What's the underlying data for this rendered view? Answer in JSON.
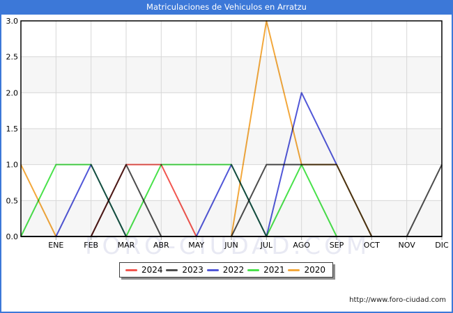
{
  "window": {
    "title": "Matriculaciones de Vehiculos en Arratzu"
  },
  "watermark": {
    "text": "FORO-CIUDAD.COM"
  },
  "footer": {
    "url": "http://www.foro-ciudad.com"
  },
  "colors": {
    "titlebar_bg": "#3c78d8",
    "titlebar_text": "#ffffff",
    "frame_border": "#3c78d8",
    "plot_bg": "#ffffff",
    "band": "#f6f6f6",
    "grid": "#d7d7d7",
    "axis": "#000000",
    "tick": "#999999",
    "label_text": "#000000",
    "watermark_text": "#e8e9f3",
    "legend_border": "#3d3d3d",
    "legend_shadow": "#8d8d8d",
    "footer_text": "#1a1a1a"
  },
  "chart_data": {
    "type": "line",
    "title": "Matriculaciones de Vehiculos en Arratzu",
    "xlabel": "",
    "ylabel": "",
    "categories": [
      "",
      "ENE",
      "FEB",
      "MAR",
      "ABR",
      "MAY",
      "JUN",
      "JUL",
      "AGO",
      "SEP",
      "OCT",
      "NOV",
      "DIC"
    ],
    "x_axis_note": "first data point sits on the left plot edge, one slot before ENE",
    "ylim": [
      0,
      3
    ],
    "ytick_step": 0.5,
    "ytick_labels": [
      "0.0",
      "0.5",
      "1.0",
      "1.5",
      "2.0",
      "2.5",
      "3.0"
    ],
    "grid": true,
    "alternating_row_bands": true,
    "legend_position": "bottom-center",
    "series": [
      {
        "name": "2024",
        "color": "#f2564f",
        "values": [
          0,
          0,
          0,
          1,
          1,
          0,
          null,
          null,
          null,
          null,
          null,
          null,
          null
        ]
      },
      {
        "name": "2023",
        "color": "#4d4d4d",
        "values": [
          0,
          0,
          0,
          1,
          0,
          0,
          0,
          1,
          1,
          1,
          0,
          0,
          1
        ]
      },
      {
        "name": "2022",
        "color": "#5157d8",
        "values": [
          0,
          0,
          1,
          0,
          0,
          0,
          1,
          0,
          2,
          1,
          null,
          null,
          null
        ]
      },
      {
        "name": "2021",
        "color": "#49e24b",
        "values": [
          0,
          1,
          1,
          0,
          1,
          1,
          1,
          0,
          1,
          0,
          0,
          0,
          0
        ]
      },
      {
        "name": "2020",
        "color": "#f3a83c",
        "values": [
          1,
          0,
          0,
          0,
          0,
          0,
          0,
          3,
          1,
          1,
          0,
          0,
          0
        ]
      }
    ]
  }
}
